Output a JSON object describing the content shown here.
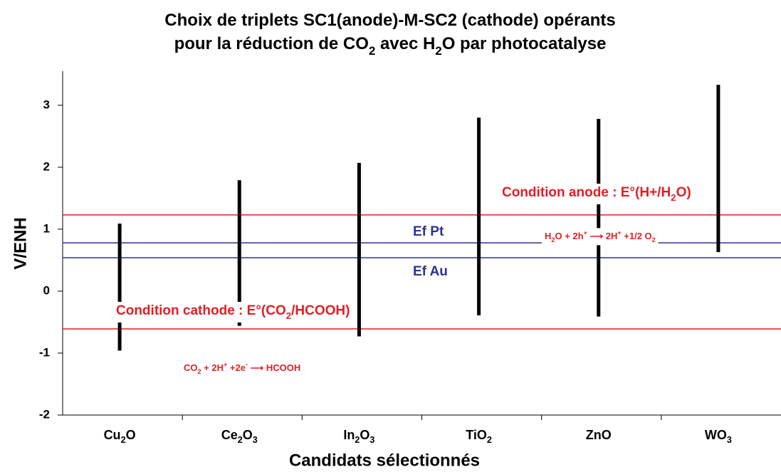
{
  "chart_data": {
    "type": "range",
    "title": [
      [
        "Choix de triplets SC1(anode)-M-SC2 (cathode) opérants"
      ],
      [
        "pour la réduction de CO",
        {
          "sub": "2"
        },
        " avec H",
        {
          "sub": "2"
        },
        "O par photocatalyse"
      ]
    ],
    "xlabel": "Candidats sélectionnés",
    "ylabel": "V/ENH",
    "categories": [
      [
        "Cu",
        {
          "sub": "2"
        },
        "O"
      ],
      [
        "Ce",
        {
          "sub": "2"
        },
        "O",
        {
          "sub": "3"
        }
      ],
      [
        "In",
        {
          "sub": "2"
        },
        "O",
        {
          "sub": "3"
        }
      ],
      [
        "TiO",
        {
          "sub": "2"
        }
      ],
      [
        "ZnO"
      ],
      [
        "WO",
        {
          "sub": "3"
        }
      ]
    ],
    "low": [
      -0.96,
      -0.56,
      -0.73,
      -0.39,
      -0.41,
      0.63
    ],
    "high": [
      1.09,
      1.79,
      2.07,
      2.8,
      2.78,
      3.33
    ],
    "color": "#000000",
    "ylim": [
      -2,
      3.55
    ],
    "yticks": [
      -2,
      -1,
      0,
      1,
      2,
      3
    ],
    "hlines": [
      {
        "value": 1.23,
        "color": "#e31e24"
      },
      {
        "value": 0.78,
        "color": "#2e3192"
      },
      {
        "value": 0.54,
        "color": "#2e3192"
      },
      {
        "value": -0.61,
        "color": "#e31e24"
      }
    ],
    "annotations": [
      {
        "text": [
          "Condition anode : E°(H+/H",
          {
            "sub": "2"
          },
          "O)"
        ],
        "color": "#e31e24"
      },
      {
        "text": [
          "Ef Pt"
        ],
        "color": "#2e3192"
      },
      {
        "text": [
          "Ef Au"
        ],
        "color": "#2e3192"
      },
      {
        "text": [
          "Condition cathode : E°(CO",
          {
            "sub": "2"
          },
          "/HCOOH)"
        ],
        "color": "#e31e24"
      },
      {
        "text": [
          "H",
          {
            "sub": "2"
          },
          "O + 2h",
          {
            "sup": "+"
          },
          " ⟶ 2H",
          {
            "sup": "+"
          },
          " +1/2 O",
          {
            "sub": "2"
          }
        ],
        "color": "#e31e24"
      },
      {
        "text": [
          "CO",
          {
            "sub": "2"
          },
          " + 2H",
          {
            "sup": "+"
          },
          " +2e",
          {
            "sup": "-"
          },
          " ⟶ HCOOH"
        ],
        "color": "#e31e24"
      }
    ]
  }
}
